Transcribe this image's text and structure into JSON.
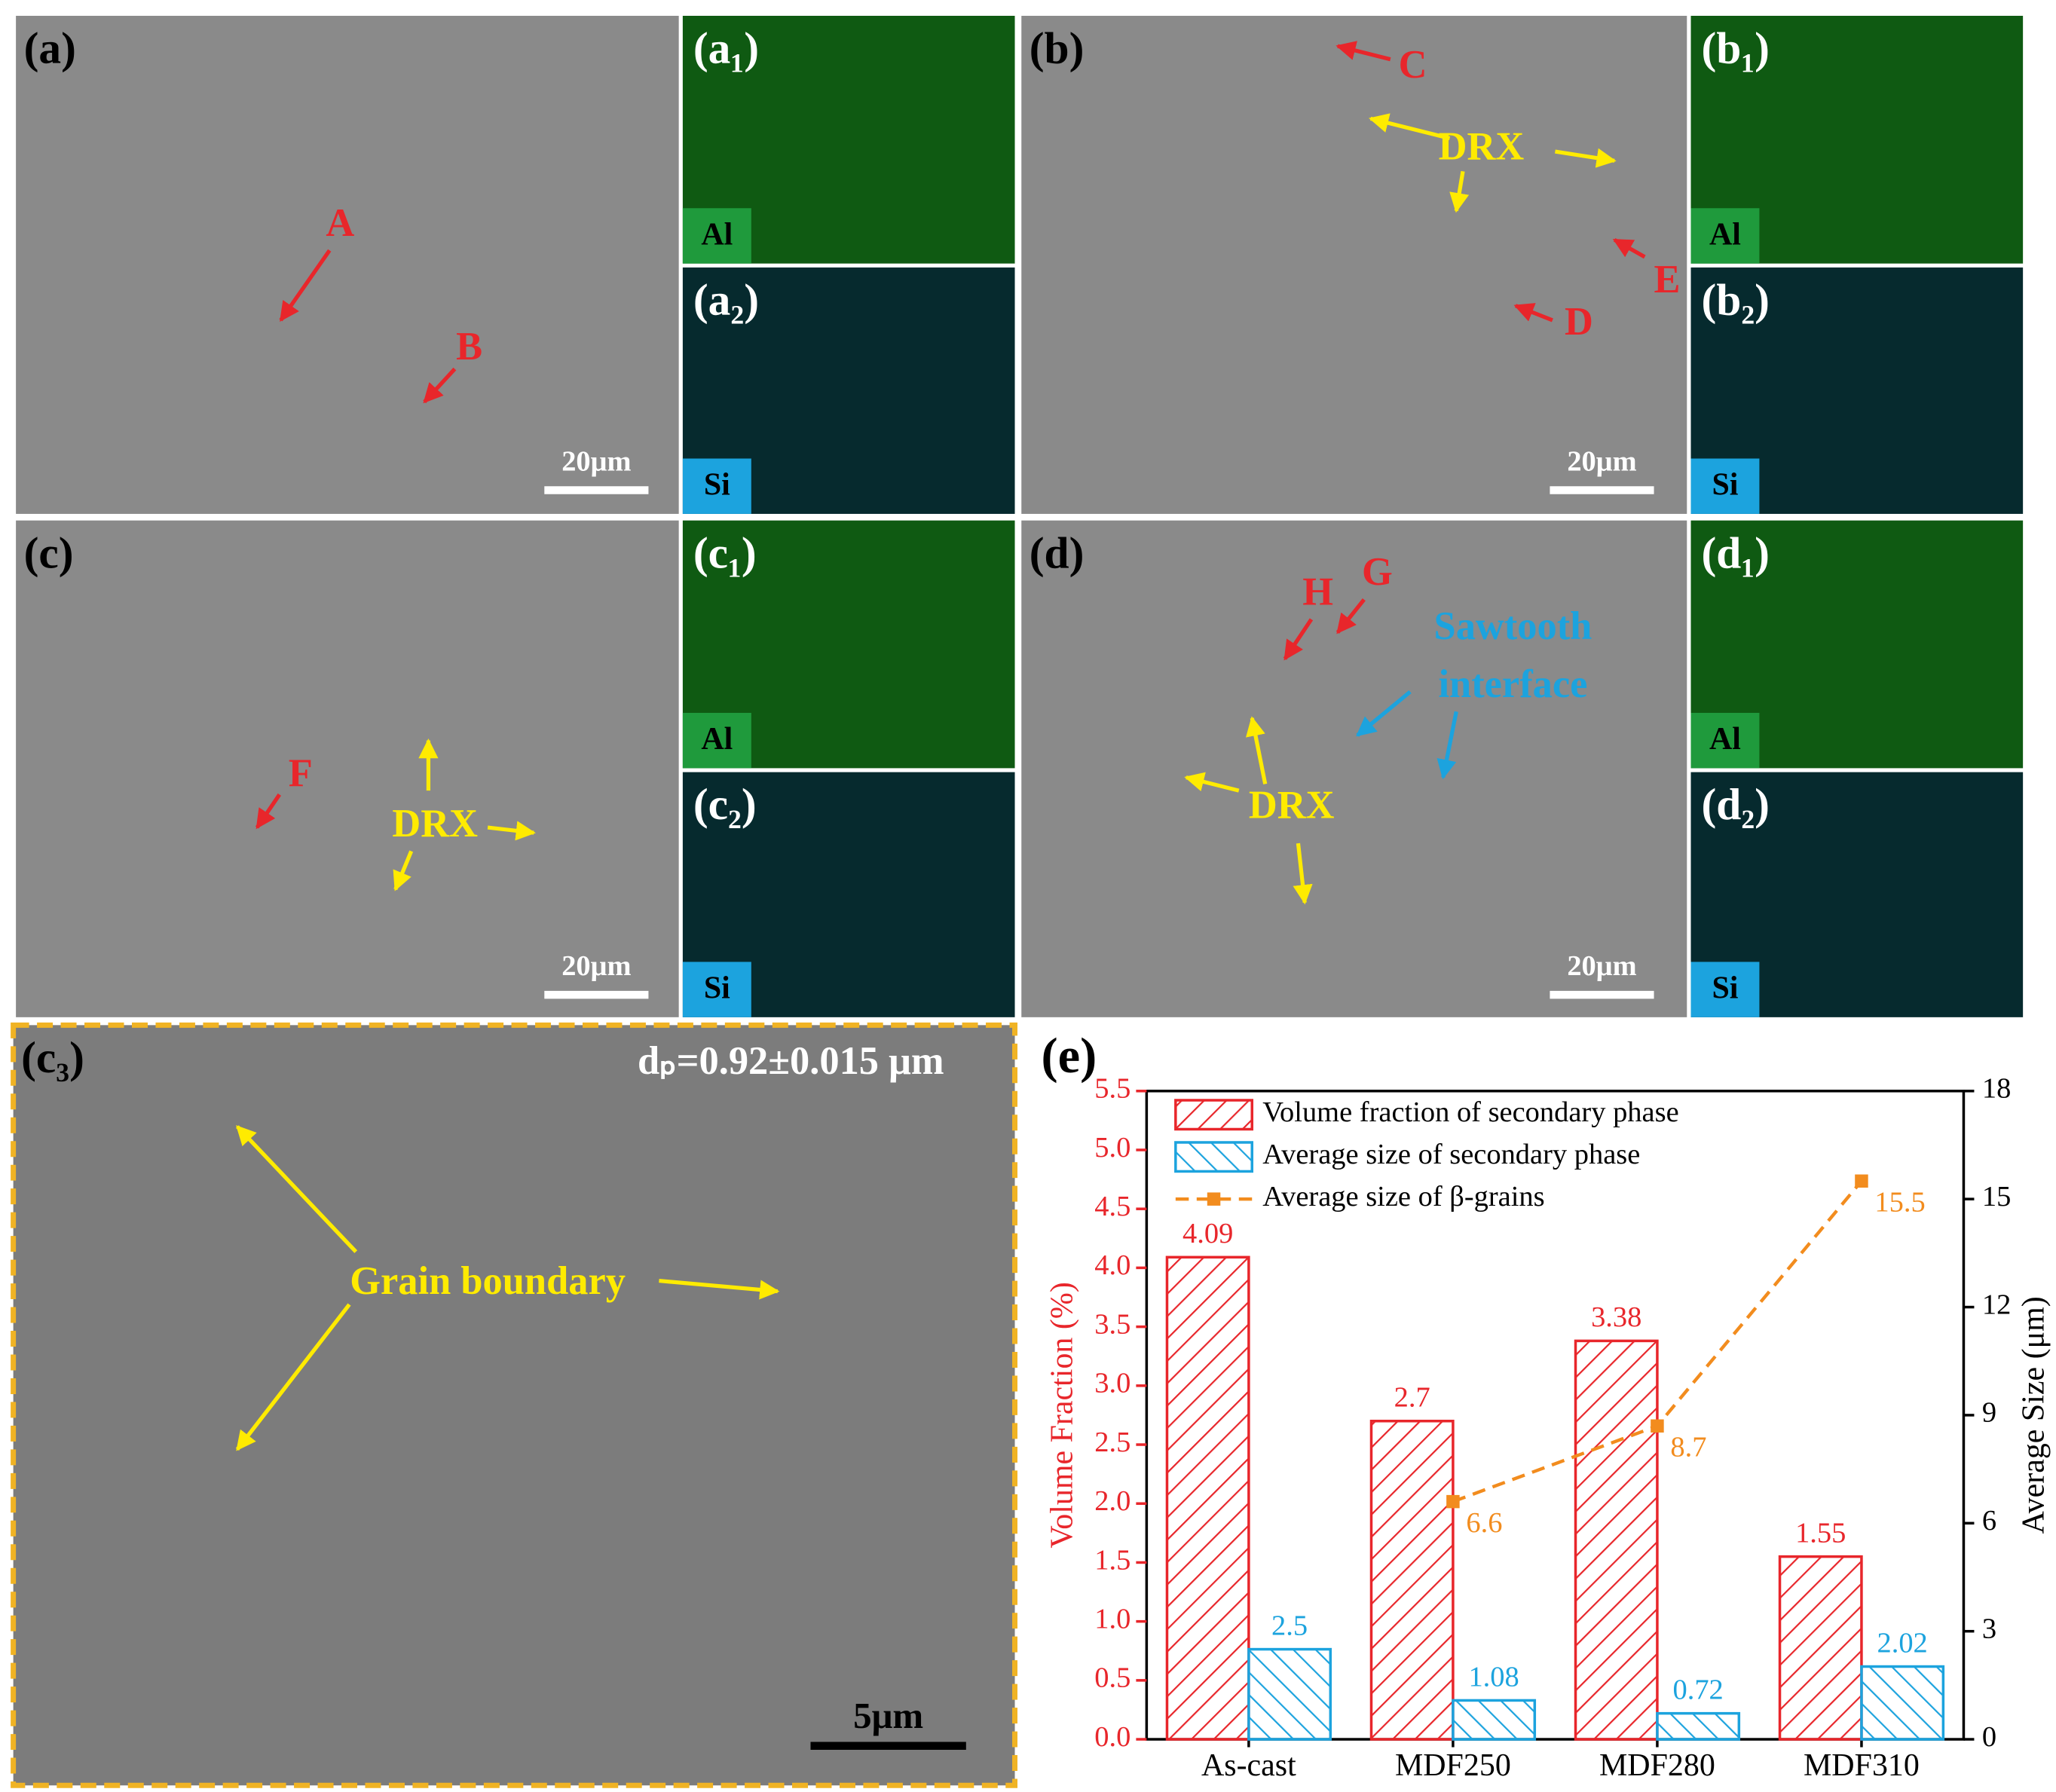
{
  "micrographs": [
    {
      "label": "(a)",
      "annotations": [
        "A",
        "B"
      ],
      "scale_bar": "20μm"
    },
    {
      "label": "(b)",
      "annotations": [
        "C",
        "DRX",
        "E",
        "D"
      ],
      "scale_bar": "20μm"
    },
    {
      "label": "(c)",
      "annotations": [
        "F",
        "DRX"
      ],
      "scale_bar": "20μm"
    },
    {
      "label": "(d)",
      "annotations": [
        "H",
        "G",
        "Sawtooth",
        "interface",
        "DRX"
      ],
      "scale_bar": "20μm"
    },
    {
      "label": "(c₃)",
      "annotations": [
        "Grain boundary",
        "dₚ=0.92±0.015 μm"
      ],
      "scale_bar": "5μm"
    }
  ],
  "maps": [
    {
      "label": "(a₁)",
      "element": "Al"
    },
    {
      "label": "(a₂)",
      "element": "Si"
    },
    {
      "label": "(b₁)",
      "element": "Al"
    },
    {
      "label": "(b₂)",
      "element": "Si"
    },
    {
      "label": "(c₁)",
      "element": "Al"
    },
    {
      "label": "(c₂)",
      "element": "Si"
    },
    {
      "label": "(d₁)",
      "element": "Al"
    },
    {
      "label": "(d₂)",
      "element": "Si"
    }
  ],
  "chart_data": {
    "type": "bar",
    "panel_label": "(e)",
    "categories": [
      "As-cast",
      "MDF250",
      "MDF280",
      "MDF310"
    ],
    "ylabel": "Volume Fraction (%)",
    "y2label": "Average Size (μm)",
    "ylim": [
      0,
      5.5
    ],
    "yticks": [
      {
        "value": 0,
        "label": "0.0"
      },
      {
        "value": 0.5,
        "label": "0.5"
      },
      {
        "value": 1,
        "label": "1.0"
      },
      {
        "value": 1.5,
        "label": "1.5"
      },
      {
        "value": 2,
        "label": "2.0"
      },
      {
        "value": 2.5,
        "label": "2.5"
      },
      {
        "value": 3,
        "label": "3.0"
      },
      {
        "value": 3.5,
        "label": "3.5"
      },
      {
        "value": 4,
        "label": "4.0"
      },
      {
        "value": 4.5,
        "label": "4.5"
      },
      {
        "value": 5,
        "label": "5.0"
      },
      {
        "value": 5.5,
        "label": "5.5"
      }
    ],
    "y2lim": [
      0,
      18
    ],
    "y2ticks": [
      0,
      3,
      6,
      9,
      12,
      15,
      18
    ],
    "legend": "upper left",
    "series": [
      {
        "name": "Volume fraction of secondary phase",
        "color": "#e8262b",
        "type": "bar",
        "values": [
          4.09,
          2.7,
          3.38,
          1.55
        ]
      },
      {
        "name": "Average size of secondary phase",
        "color": "#1ca3de",
        "type": "bar",
        "axis": "y2",
        "values": [
          2.5,
          1.08,
          0.72,
          2.02
        ]
      },
      {
        "name": "Average size of β-grains",
        "color": "#f28c1e",
        "type": "line",
        "axis": "y2",
        "values": [
          null,
          6.6,
          8.7,
          15.5
        ]
      }
    ]
  }
}
